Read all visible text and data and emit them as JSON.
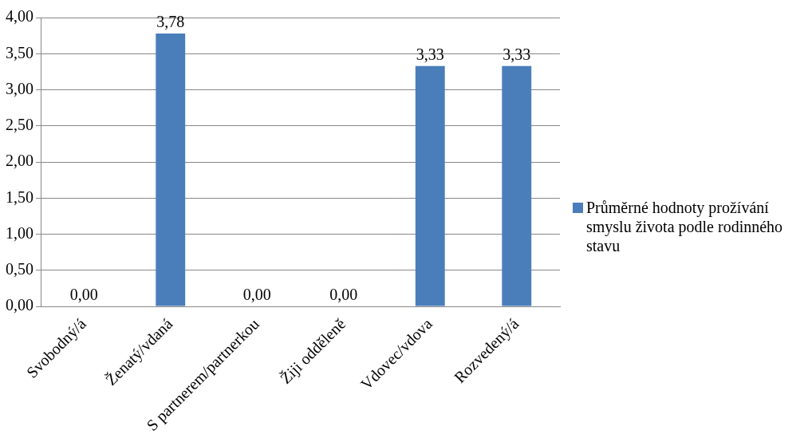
{
  "chart_data": {
    "type": "bar",
    "categories": [
      "Svobodný/á",
      "Ženatý/vdaná",
      "S partnerem/partnerkou",
      "Žiji odděleně",
      "Vdovec/vdova",
      "Rozvedený/á"
    ],
    "series": [
      {
        "name": "Průměrné hodnoty prožívání smyslu života podle rodinného stavu",
        "color": "#4a7ebb",
        "values": [
          0,
          3.78,
          0,
          0,
          3.33,
          3.33
        ],
        "value_labels": [
          "0,00",
          "3,78",
          "0,00",
          "0,00",
          "3,33",
          "3,33"
        ]
      }
    ],
    "ylim": [
      0,
      4
    ],
    "yticks": [
      {
        "value": 0,
        "label": "0,00"
      },
      {
        "value": 0.5,
        "label": "0,50"
      },
      {
        "value": 1,
        "label": "1,00"
      },
      {
        "value": 1.5,
        "label": "1,50"
      },
      {
        "value": 2,
        "label": "2,00"
      },
      {
        "value": 2.5,
        "label": "2,50"
      },
      {
        "value": 3,
        "label": "3,00"
      },
      {
        "value": 3.5,
        "label": "3,50"
      },
      {
        "value": 4,
        "label": "4,00"
      }
    ],
    "grid": "y",
    "legend": "right"
  }
}
